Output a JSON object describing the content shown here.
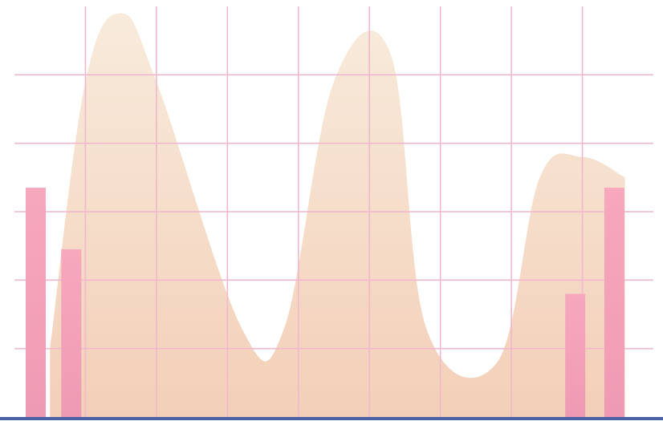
{
  "chart_data": {
    "type": "area",
    "title": "",
    "xlabel": "",
    "ylabel": "",
    "grid": true,
    "legend": "none",
    "area_series": {
      "x": [
        0.5,
        1.0,
        1.5,
        2.0,
        3.2,
        3.8,
        4.5,
        5.3,
        5.8,
        6.8,
        7.4,
        8.0,
        8.6
      ],
      "values": [
        1.0,
        4.9,
        5.9,
        4.9,
        1.3,
        1.3,
        4.9,
        5.3,
        1.3,
        0.8,
        3.5,
        3.8,
        3.5
      ]
    },
    "bar_series": {
      "x": [
        0.3,
        0.8,
        7.9,
        8.45
      ],
      "values": [
        3.35,
        2.45,
        1.8,
        3.35
      ]
    },
    "xlim": [
      0,
      9
    ],
    "ylim": [
      0,
      6
    ],
    "x_gridlines": [
      1,
      2,
      3,
      4,
      5,
      6,
      7,
      8
    ],
    "y_gridlines": [
      1,
      2,
      3,
      4,
      5
    ],
    "colors": {
      "area_top": "#f8ebdc",
      "area_bottom": "#f3cfb8",
      "bar_top": "#f7a8bd",
      "bar_bottom": "#ef9ab4",
      "grid": "#f0b7cd",
      "baseline": "#4a62a5"
    }
  }
}
